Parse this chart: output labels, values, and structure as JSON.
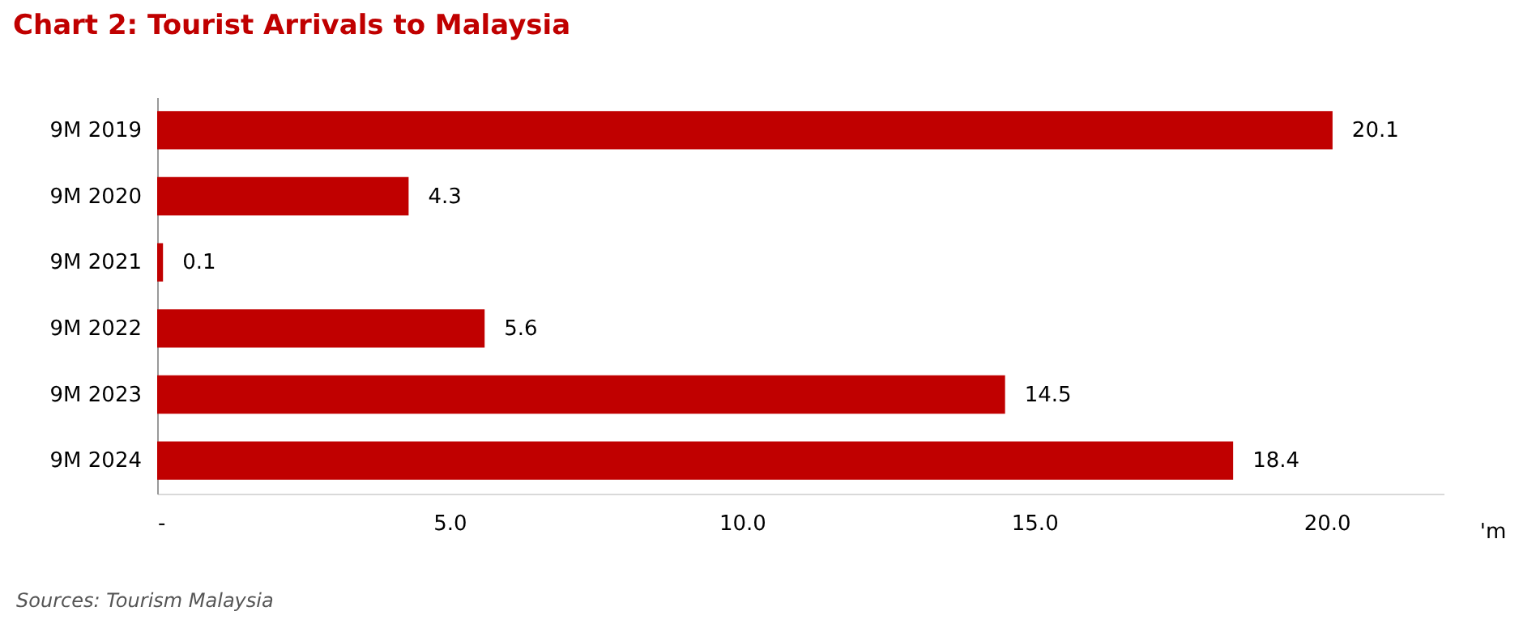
{
  "chart_data": {
    "type": "bar",
    "orientation": "horizontal",
    "title": "Chart 2: Tourist Arrivals to Malaysia",
    "xlabel": "'m",
    "categories": [
      "9M 2019",
      "9M 2020",
      "9M 2021",
      "9M 2022",
      "9M 2023",
      "9M 2024"
    ],
    "values": [
      20.1,
      4.3,
      0.1,
      5.6,
      14.5,
      18.4
    ],
    "color": "#c00000",
    "data_labels": true,
    "xlim": [
      0,
      22
    ],
    "xticks": [
      {
        "value": 0,
        "label": "-"
      },
      {
        "value": 5,
        "label": "5.0"
      },
      {
        "value": 10,
        "label": "10.0"
      },
      {
        "value": 15,
        "label": "15.0"
      },
      {
        "value": 20,
        "label": "20.0"
      }
    ],
    "grid": false,
    "annotations": [
      "Sources: Tourism Malaysia"
    ]
  }
}
